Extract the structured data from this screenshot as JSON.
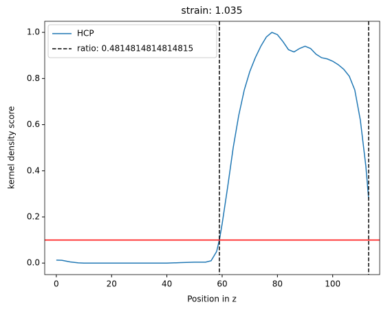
{
  "chart_data": {
    "type": "line",
    "title": "strain: 1.035",
    "x_label": "Position in z",
    "y_label": "kernel density score",
    "xlim": [
      -4.2,
      117
    ],
    "ylim": [
      -0.05,
      1.048
    ],
    "xticks": [
      0,
      20,
      40,
      60,
      80,
      100
    ],
    "yticks": [
      {
        "value": 0,
        "label": "0.0"
      },
      {
        "value": 0.2,
        "label": "0.2"
      },
      {
        "value": 0.4,
        "label": "0.4"
      },
      {
        "value": 0.6,
        "label": "0.6"
      },
      {
        "value": 0.8,
        "label": "0.8"
      },
      {
        "value": 1,
        "label": "1.0"
      }
    ],
    "legend": "upper left",
    "x": [
      0,
      2,
      5,
      8,
      10,
      20,
      30,
      40,
      45,
      50,
      54,
      56,
      58,
      59,
      60,
      62,
      64,
      66,
      68,
      70,
      72,
      74,
      76,
      78,
      80,
      82,
      84,
      86,
      88,
      90,
      92,
      94,
      96,
      98,
      100,
      102,
      104,
      106,
      108,
      110,
      112,
      113
    ],
    "series": [
      {
        "name": "HCP",
        "color": "#1f77b4",
        "values": [
          0.013,
          0.012,
          0.005,
          0.001,
          0,
          0,
          0,
          0,
          0.002,
          0.004,
          0.004,
          0.01,
          0.05,
          0.1,
          0.17,
          0.33,
          0.5,
          0.64,
          0.75,
          0.83,
          0.89,
          0.94,
          0.98,
          1.0,
          0.99,
          0.96,
          0.925,
          0.915,
          0.93,
          0.94,
          0.93,
          0.905,
          0.89,
          0.885,
          0.875,
          0.86,
          0.84,
          0.81,
          0.75,
          0.62,
          0.42,
          0.28
        ]
      }
    ],
    "vlines": {
      "name": "ratio: 0.4814814814814815",
      "color": "#000000",
      "values": [
        59,
        113
      ]
    },
    "hlines": {
      "color": "#ff0000",
      "values": [
        0.1
      ]
    }
  }
}
